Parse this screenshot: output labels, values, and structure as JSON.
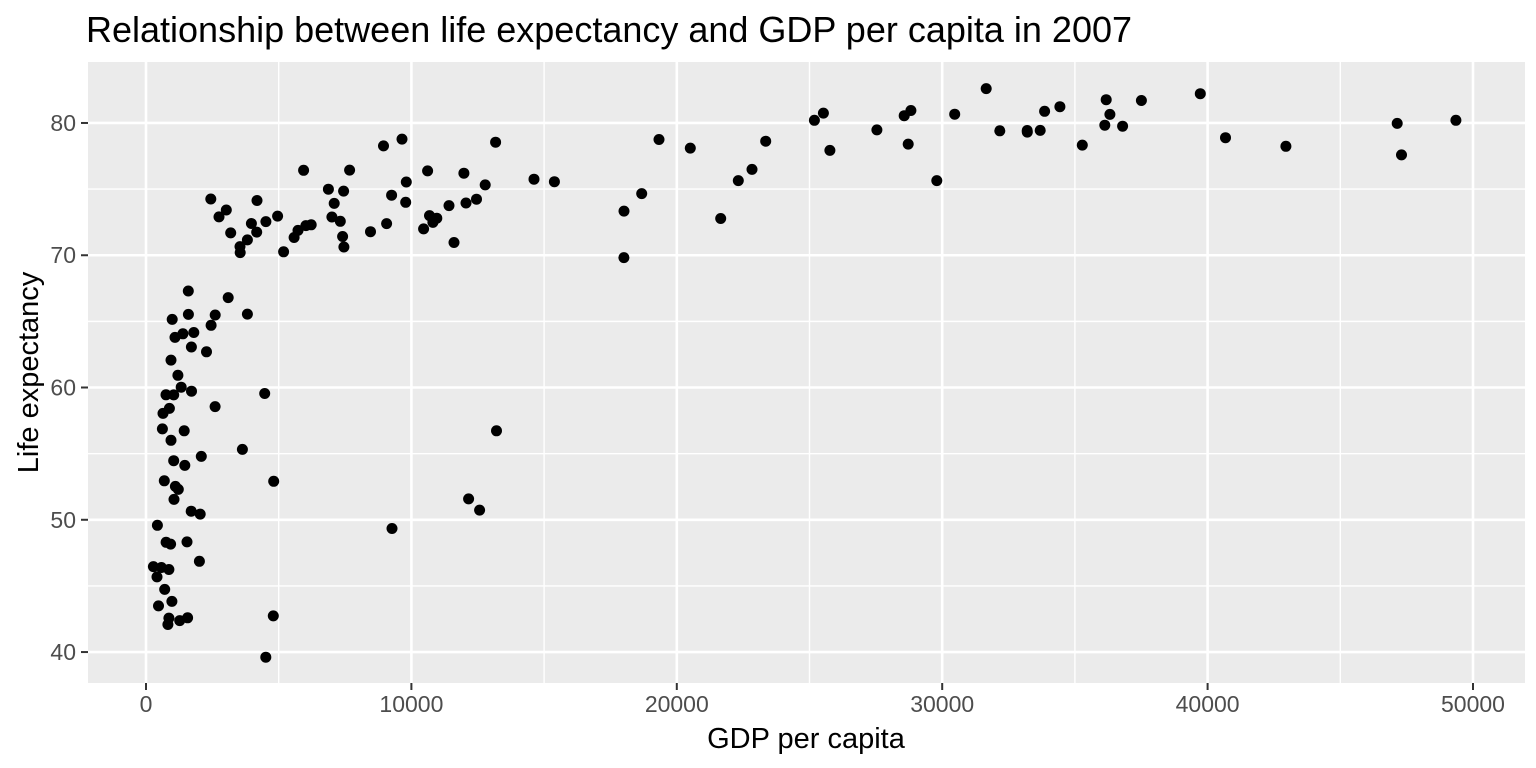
{
  "chart_data": {
    "type": "scatter",
    "title": "Relationship between life expectancy and GDP per capita in 2007",
    "xlabel": "GDP per capita",
    "ylabel": "Life expectancy",
    "legend": "none",
    "grid": true,
    "panel_bg": "#EBEBEB",
    "gridline_color": "#FFFFFF",
    "point_color": "#000000",
    "tick_mark_color": "#333333",
    "tick_label_color": "#4D4D4D",
    "xlim": [
      -2185,
      51959
    ],
    "ylim": [
      37.66,
      84.61
    ],
    "x_ticks": [
      0,
      10000,
      20000,
      30000,
      40000,
      50000
    ],
    "x_tick_labels": [
      "0",
      "10000",
      "20000",
      "30000",
      "40000",
      "50000"
    ],
    "y_ticks": [
      40,
      50,
      60,
      70,
      80
    ],
    "y_tick_labels": [
      "40",
      "50",
      "60",
      "70",
      "80"
    ],
    "x_minor_ticks": [
      5000,
      15000,
      25000,
      35000,
      45000
    ],
    "y_minor_ticks": [
      45,
      55,
      65,
      75
    ],
    "points": [
      [
        974.6,
        43.83
      ],
      [
        5937,
        76.42
      ],
      [
        6223.4,
        72.3
      ],
      [
        4797.2,
        42.73
      ],
      [
        12779.4,
        75.32
      ],
      [
        34435.4,
        81.23
      ],
      [
        36126.5,
        79.83
      ],
      [
        29796,
        75.64
      ],
      [
        1391.3,
        64.06
      ],
      [
        33692.6,
        79.44
      ],
      [
        1441.3,
        56.73
      ],
      [
        3822.1,
        65.55
      ],
      [
        7446.3,
        74.85
      ],
      [
        12570,
        50.73
      ],
      [
        9065.8,
        72.39
      ],
      [
        10680.8,
        73.0
      ],
      [
        1217,
        52.3
      ],
      [
        430.1,
        49.58
      ],
      [
        1713.8,
        59.72
      ],
      [
        2042.1,
        50.43
      ],
      [
        36319.2,
        80.65
      ],
      [
        706,
        44.74
      ],
      [
        1704.1,
        50.65
      ],
      [
        13171.6,
        78.55
      ],
      [
        4959.1,
        72.96
      ],
      [
        7006.6,
        72.89
      ],
      [
        986.1,
        65.15
      ],
      [
        277.6,
        46.46
      ],
      [
        3632.6,
        55.32
      ],
      [
        9645.1,
        78.78
      ],
      [
        1544.8,
        48.33
      ],
      [
        14619.2,
        75.75
      ],
      [
        8948.1,
        78.27
      ],
      [
        22833.3,
        76.49
      ],
      [
        35278.4,
        78.33
      ],
      [
        2082.5,
        54.79
      ],
      [
        6025.4,
        72.24
      ],
      [
        6873.3,
        74.99
      ],
      [
        5581.2,
        71.34
      ],
      [
        5728.4,
        71.88
      ],
      [
        12154.1,
        51.58
      ],
      [
        641.4,
        58.04
      ],
      [
        690.8,
        52.95
      ],
      [
        33207.1,
        79.31
      ],
      [
        30470,
        80.66
      ],
      [
        13206.5,
        56.73
      ],
      [
        752.7,
        59.45
      ],
      [
        32170.4,
        79.41
      ],
      [
        1327.6,
        60.02
      ],
      [
        27538.4,
        79.48
      ],
      [
        5186.1,
        70.26
      ],
      [
        942.7,
        56.01
      ],
      [
        579.2,
        46.39
      ],
      [
        1201.6,
        60.92
      ],
      [
        3548.3,
        70.2
      ],
      [
        39725,
        82.21
      ],
      [
        18008.9,
        73.34
      ],
      [
        36180.8,
        81.76
      ],
      [
        2452.2,
        64.7
      ],
      [
        3540.7,
        70.65
      ],
      [
        11605.7,
        70.96
      ],
      [
        4471.1,
        59.55
      ],
      [
        40676,
        78.89
      ],
      [
        25523.3,
        80.75
      ],
      [
        28569.7,
        80.55
      ],
      [
        7320.9,
        72.57
      ],
      [
        31656.1,
        82.6
      ],
      [
        4519.5,
        72.54
      ],
      [
        1463.2,
        54.11
      ],
      [
        1593.1,
        67.3
      ],
      [
        23348.1,
        78.62
      ],
      [
        47307,
        77.59
      ],
      [
        10461.1,
        71.99
      ],
      [
        1569.3,
        42.59
      ],
      [
        414.5,
        45.68
      ],
      [
        12057.3,
        73.95
      ],
      [
        1044.8,
        59.44
      ],
      [
        759.3,
        48.3
      ],
      [
        12451.7,
        74.24
      ],
      [
        1042.6,
        54.47
      ],
      [
        1803.2,
        64.16
      ],
      [
        10957,
        72.8
      ],
      [
        11977.6,
        76.2
      ],
      [
        3095.8,
        66.8
      ],
      [
        9254,
        74.54
      ],
      [
        3820.2,
        71.16
      ],
      [
        823.7,
        42.08
      ],
      [
        944,
        62.07
      ],
      [
        4811.1,
        52.91
      ],
      [
        1091.4,
        63.79
      ],
      [
        36797.9,
        79.76
      ],
      [
        25185,
        80.2
      ],
      [
        2749.3,
        72.9
      ],
      [
        619.7,
        56.87
      ],
      [
        2014,
        46.86
      ],
      [
        49357.2,
        80.2
      ],
      [
        22316.2,
        75.64
      ],
      [
        2606,
        65.48
      ],
      [
        9809.2,
        75.54
      ],
      [
        4172.8,
        71.75
      ],
      [
        7408.9,
        71.42
      ],
      [
        3190.5,
        71.69
      ],
      [
        15389.9,
        75.56
      ],
      [
        20509.6,
        78.1
      ],
      [
        19328.7,
        78.75
      ],
      [
        7670.1,
        76.44
      ],
      [
        10808.5,
        72.48
      ],
      [
        863.1,
        46.24
      ],
      [
        1598.4,
        65.53
      ],
      [
        21654.8,
        72.78
      ],
      [
        1712.5,
        63.06
      ],
      [
        9786.5,
        74.0
      ],
      [
        862.5,
        42.57
      ],
      [
        47143.2,
        79.97
      ],
      [
        18678.3,
        74.66
      ],
      [
        25768.3,
        77.93
      ],
      [
        926.1,
        48.16
      ],
      [
        9270,
        49.34
      ],
      [
        28821.1,
        80.94
      ],
      [
        3970.1,
        72.4
      ],
      [
        2602.4,
        58.56
      ],
      [
        4513.5,
        39.61
      ],
      [
        33859.7,
        80.88
      ],
      [
        37506.4,
        81.7
      ],
      [
        4184.5,
        74.14
      ],
      [
        28718.3,
        78.4
      ],
      [
        1107.5,
        52.52
      ],
      [
        7458.4,
        70.62
      ],
      [
        883,
        58.42
      ],
      [
        18008.5,
        69.82
      ],
      [
        7092.9,
        73.92
      ],
      [
        8458.3,
        71.78
      ],
      [
        1056.4,
        51.54
      ],
      [
        33203.3,
        79.43
      ],
      [
        42951.7,
        78.24
      ],
      [
        10611.5,
        76.38
      ],
      [
        11415.8,
        73.75
      ],
      [
        2441.6,
        74.25
      ],
      [
        3025.3,
        73.42
      ],
      [
        2281,
        62.7
      ],
      [
        1271.2,
        42.38
      ],
      [
        469.7,
        43.49
      ]
    ]
  }
}
